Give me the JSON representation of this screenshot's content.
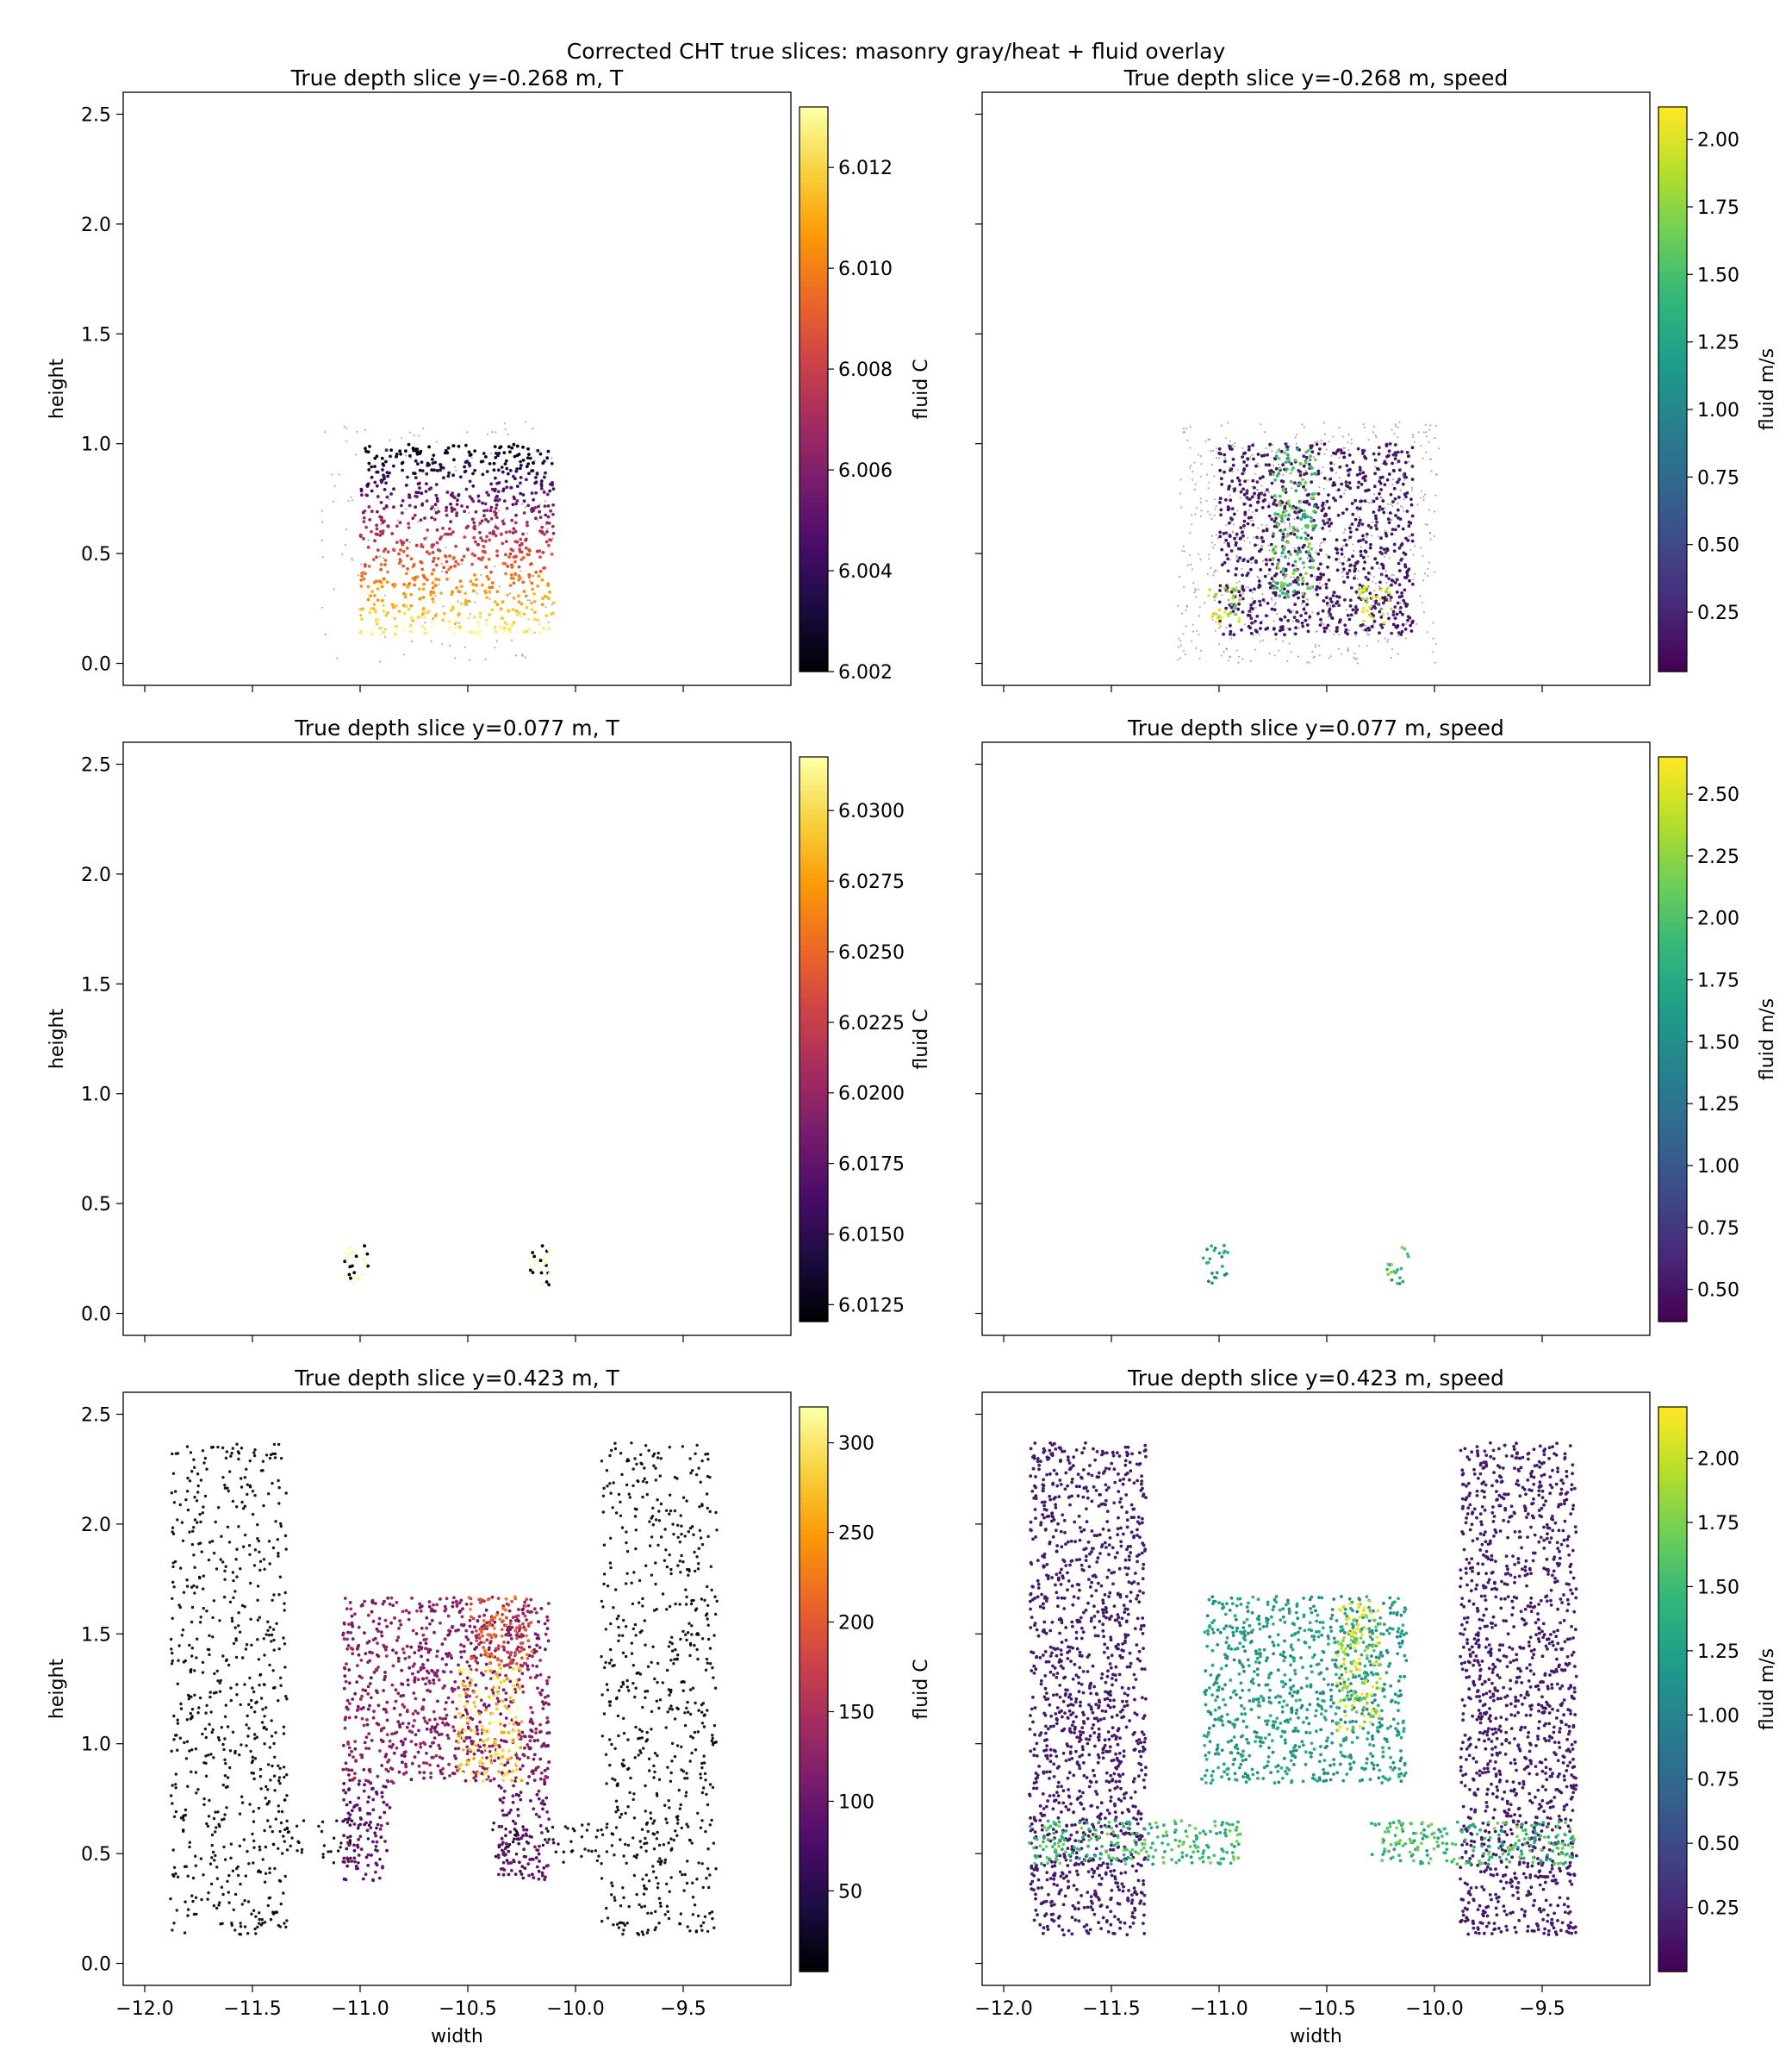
{
  "figure": {
    "suptitle": "Corrected CHT true slices: masonry gray/heat + fluid overlay"
  },
  "chart_data": [
    {
      "type": "scatter",
      "title": "True depth slice y=-0.268 m, T",
      "xlabel": "",
      "ylabel": "height",
      "xlim": [
        -12.1,
        -9.0
      ],
      "ylim": [
        -0.1,
        2.6
      ],
      "x_ticks": [
        -12.0,
        -11.5,
        -11.0,
        -10.5,
        -10.0,
        -9.5
      ],
      "x_tick_labels_shown": false,
      "y_ticks": [
        "0.0",
        "0.5",
        "1.0",
        "1.5",
        "2.0",
        "2.5"
      ],
      "colormap": "inferno",
      "colorbar": {
        "label": "fluid C",
        "range": [
          6.002,
          6.0132
        ],
        "ticks": [
          "6.002",
          "6.004",
          "6.006",
          "6.008",
          "6.010",
          "6.012"
        ]
      },
      "regions": [
        {
          "kind": "fluid",
          "x": [
            -11.0,
            -10.1
          ],
          "y": [
            0.13,
            1.0
          ],
          "value_bottom": 6.0132,
          "value_top": 6.002
        },
        {
          "kind": "masonry_halo",
          "x": [
            -11.18,
            -10.1
          ],
          "y": [
            0.0,
            1.1
          ]
        }
      ]
    },
    {
      "type": "scatter",
      "title": "True depth slice y=-0.268 m, speed",
      "xlabel": "",
      "ylabel": "",
      "xlim": [
        -12.1,
        -9.0
      ],
      "ylim": [
        -0.1,
        2.6
      ],
      "x_ticks": [
        -12.0,
        -11.5,
        -11.0,
        -10.5,
        -10.0,
        -9.5
      ],
      "x_tick_labels_shown": false,
      "y_tick_labels_shown": false,
      "colormap": "viridis",
      "colorbar": {
        "label": "fluid m/s",
        "range": [
          0.03,
          2.12
        ],
        "ticks": [
          "0.25",
          "0.50",
          "0.75",
          "1.00",
          "1.25",
          "1.50",
          "1.75",
          "2.00"
        ]
      },
      "regions": [
        {
          "kind": "fluid",
          "x": [
            -11.0,
            -10.1
          ],
          "y": [
            0.13,
            1.0
          ],
          "value": 0.15
        },
        {
          "kind": "jet",
          "x": [
            -10.75,
            -10.55
          ],
          "y": [
            0.3,
            0.98
          ],
          "value": 1.5
        },
        {
          "kind": "jet",
          "x": [
            -11.05,
            -10.9
          ],
          "y": [
            0.18,
            0.35
          ],
          "value": 2.0
        },
        {
          "kind": "jet",
          "x": [
            -10.35,
            -10.2
          ],
          "y": [
            0.18,
            0.35
          ],
          "value": 2.0
        },
        {
          "kind": "masonry",
          "x": [
            -11.2,
            -9.98
          ],
          "y": [
            0.0,
            1.1
          ]
        }
      ]
    },
    {
      "type": "scatter",
      "title": "True depth slice y=0.077 m, T",
      "xlabel": "",
      "ylabel": "height",
      "xlim": [
        -12.1,
        -9.0
      ],
      "ylim": [
        -0.1,
        2.6
      ],
      "x_ticks": [
        -12.0,
        -11.5,
        -11.0,
        -10.5,
        -10.0,
        -9.5
      ],
      "x_tick_labels_shown": false,
      "y_ticks": [
        "0.0",
        "0.5",
        "1.0",
        "1.5",
        "2.0",
        "2.5"
      ],
      "colormap": "inferno",
      "colorbar": {
        "label": "fluid C",
        "range": [
          6.0119,
          6.0319
        ],
        "ticks": [
          "6.0125",
          "6.0150",
          "6.0175",
          "6.0200",
          "6.0225",
          "6.0250",
          "6.0275",
          "6.0300"
        ]
      },
      "regions": [
        {
          "kind": "fluid",
          "x": [
            -11.08,
            -10.96
          ],
          "y": [
            0.13,
            0.31
          ],
          "value": 6.015
        },
        {
          "kind": "fluid",
          "x": [
            -10.22,
            -10.12
          ],
          "y": [
            0.13,
            0.31
          ],
          "value": 6.024
        }
      ]
    },
    {
      "type": "scatter",
      "title": "True depth slice y=0.077 m, speed",
      "xlabel": "",
      "ylabel": "",
      "xlim": [
        -12.1,
        -9.0
      ],
      "ylim": [
        -0.1,
        2.6
      ],
      "x_ticks": [
        -12.0,
        -11.5,
        -11.0,
        -10.5,
        -10.0,
        -9.5
      ],
      "x_tick_labels_shown": false,
      "y_tick_labels_shown": false,
      "colormap": "viridis",
      "colorbar": {
        "label": "fluid m/s",
        "range": [
          0.37,
          2.65
        ],
        "ticks": [
          "0.50",
          "0.75",
          "1.00",
          "1.25",
          "1.50",
          "1.75",
          "2.00",
          "2.25",
          "2.50"
        ]
      },
      "regions": [
        {
          "kind": "fluid",
          "x": [
            -11.08,
            -10.96
          ],
          "y": [
            0.13,
            0.31
          ],
          "value": 1.6
        },
        {
          "kind": "fluid",
          "x": [
            -10.22,
            -10.12
          ],
          "y": [
            0.13,
            0.31
          ],
          "value": 1.9
        }
      ]
    },
    {
      "type": "scatter",
      "title": "True depth slice y=0.423 m, T",
      "xlabel": "width",
      "ylabel": "height",
      "xlim": [
        -12.1,
        -9.0
      ],
      "ylim": [
        -0.1,
        2.6
      ],
      "x_ticks": [
        "−12.0",
        "−11.5",
        "−11.0",
        "−10.5",
        "−10.0",
        "−9.5"
      ],
      "y_ticks": [
        "0.0",
        "0.5",
        "1.0",
        "1.5",
        "2.0",
        "2.5"
      ],
      "colormap": "inferno",
      "colorbar": {
        "label": "fluid C",
        "range": [
          5,
          320
        ],
        "ticks": [
          "50",
          "100",
          "150",
          "200",
          "250",
          "300"
        ]
      },
      "regions": [
        {
          "kind": "masonry",
          "x": [
            -11.88,
            -11.34
          ],
          "y": [
            0.13,
            2.37
          ]
        },
        {
          "kind": "masonry",
          "x": [
            -9.88,
            -9.34
          ],
          "y": [
            0.13,
            2.37
          ]
        },
        {
          "kind": "masonry",
          "x": [
            -11.34,
            -10.9
          ],
          "y": [
            0.45,
            0.65
          ]
        },
        {
          "kind": "masonry",
          "x": [
            -10.4,
            -9.88
          ],
          "y": [
            0.45,
            0.65
          ]
        },
        {
          "kind": "fluid",
          "x": [
            -11.08,
            -10.12
          ],
          "y": [
            0.82,
            1.67
          ],
          "value": 120
        },
        {
          "kind": "fluid",
          "x": [
            -11.08,
            -10.86
          ],
          "y": [
            0.37,
            0.82
          ],
          "value": 90
        },
        {
          "kind": "fluid",
          "x": [
            -10.36,
            -10.12
          ],
          "y": [
            0.37,
            0.82
          ],
          "value": 90
        },
        {
          "kind": "hot",
          "x": [
            -10.55,
            -10.25
          ],
          "y": [
            0.82,
            1.35
          ],
          "value": 300
        },
        {
          "kind": "hot",
          "x": [
            -10.5,
            -10.2
          ],
          "y": [
            1.35,
            1.67
          ],
          "value": 200
        }
      ]
    },
    {
      "type": "scatter",
      "title": "True depth slice y=0.423 m, speed",
      "xlabel": "width",
      "ylabel": "",
      "xlim": [
        -12.1,
        -9.0
      ],
      "ylim": [
        -0.1,
        2.6
      ],
      "x_ticks": [
        "−12.0",
        "−11.5",
        "−11.0",
        "−10.5",
        "−10.0",
        "−9.5"
      ],
      "y_tick_labels_shown": false,
      "colormap": "viridis",
      "colorbar": {
        "label": "fluid m/s",
        "range": [
          0.0,
          2.2
        ],
        "ticks": [
          "0.25",
          "0.50",
          "0.75",
          "1.00",
          "1.25",
          "1.50",
          "1.75",
          "2.00"
        ]
      },
      "regions": [
        {
          "kind": "fluid",
          "x": [
            -11.88,
            -11.34
          ],
          "y": [
            0.13,
            2.37
          ],
          "value": 0.15
        },
        {
          "kind": "fluid",
          "x": [
            -9.88,
            -9.34
          ],
          "y": [
            0.13,
            2.37
          ],
          "value": 0.15
        },
        {
          "kind": "fluid",
          "x": [
            -11.08,
            -10.13
          ],
          "y": [
            0.82,
            1.67
          ],
          "value": 1.2
        },
        {
          "kind": "jet",
          "x": [
            -10.45,
            -10.25
          ],
          "y": [
            1.05,
            1.65
          ],
          "value": 2.0
        },
        {
          "kind": "jet",
          "x": [
            -11.88,
            -10.9
          ],
          "y": [
            0.45,
            0.65
          ],
          "value": 1.5
        },
        {
          "kind": "jet",
          "x": [
            -10.3,
            -9.34
          ],
          "y": [
            0.45,
            0.65
          ],
          "value": 1.5
        }
      ]
    }
  ]
}
